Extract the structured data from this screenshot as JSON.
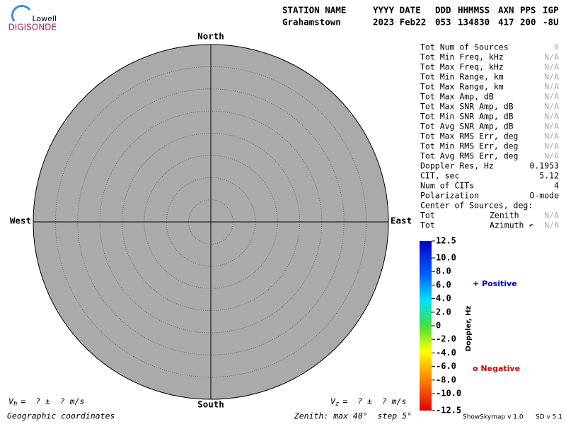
{
  "header": {
    "logo_top": "Lowell",
    "logo_bottom": "DIGISONDE",
    "labels": [
      "STATION NAME",
      "YYYY DATE",
      "DDD",
      "HHMMSS",
      "AXN",
      "PPS",
      "IGP"
    ],
    "values": [
      "Grahamstown",
      "2023 Feb22",
      "053",
      "134830",
      "417",
      "200",
      "-8U"
    ]
  },
  "compass": {
    "north": "North",
    "south": "South",
    "east": "East",
    "west": "West"
  },
  "stats": {
    "rows": [
      [
        "Tot Num of Sources",
        "0"
      ],
      [
        "Tot Min Freq, kHz",
        "N/A"
      ],
      [
        "Tot Max Freq, kHz",
        "N/A"
      ],
      [
        "Tot Min Range, km",
        "N/A"
      ],
      [
        "Tot Max Range, km",
        "N/A"
      ],
      [
        "Tot Max Amp, dB",
        "N/A"
      ],
      [
        "Tot Max SNR Amp, dB",
        "N/A"
      ],
      [
        "Tot Min SNR Amp, dB",
        "N/A"
      ],
      [
        "Tot Avg SNR Amp, dB",
        "N/A"
      ],
      [
        "Tot Max RMS Err, deg",
        "N/A"
      ],
      [
        "Tot Min RMS Err, deg",
        "N/A"
      ],
      [
        "Tot Avg RMS Err, deg",
        "N/A"
      ],
      [
        "Doppler Res, Hz",
        "0.1953"
      ],
      [
        "CIT, sec",
        "5.12"
      ],
      [
        "Num of CITs",
        "4"
      ],
      [
        "Polarization",
        "O-mode"
      ]
    ],
    "center_title": "Center of Sources, deg:",
    "center_rows": [
      [
        "Tot",
        "Zenith",
        "N/A"
      ],
      [
        "Tot",
        "Azimuth ↶",
        "N/A"
      ]
    ]
  },
  "colorbar": {
    "title": "Doppler, Hz",
    "lim": [
      -12.5,
      12.5
    ],
    "ticks": [
      12.5,
      {
        "value": 10,
        "label": "10.0"
      },
      {
        "value": 8,
        "label": "8.0"
      },
      {
        "value": 6,
        "label": "6.0"
      },
      {
        "value": 4,
        "label": "4.0"
      },
      {
        "value": 2,
        "label": "2.0"
      },
      0,
      {
        "value": -2,
        "label": "-2.0"
      },
      {
        "value": -4,
        "label": "-4.0"
      },
      {
        "value": -6,
        "label": "-6.0"
      },
      {
        "value": -8,
        "label": "-8.0"
      },
      {
        "value": -10,
        "label": "-10.0"
      },
      -12.5
    ]
  },
  "legend": {
    "positive_symbol": "+",
    "positive": "Positive",
    "negative_symbol": "o",
    "negative": "Negative"
  },
  "velocity": {
    "vh_symbol": "V",
    "vh_sub": "h",
    "vh_text": "=  ? ±  ? m/s",
    "vz_symbol": "V",
    "vz_sub": "z",
    "vz_text": "=  ? ±  ? m/s"
  },
  "footer": {
    "coords": "Geographic coordinates",
    "zenith": "Zenith: max 40°  step 5°",
    "program": "ShowSkymap v 1.0",
    "version": "SD v 5.1"
  }
}
